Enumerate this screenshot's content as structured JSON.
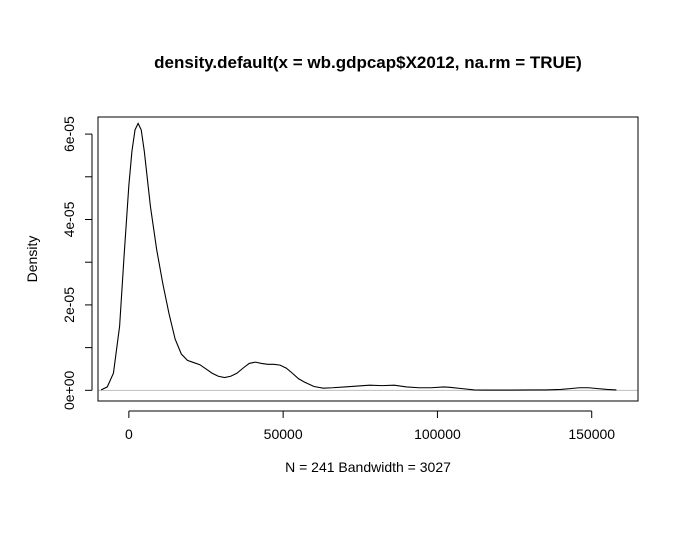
{
  "chart_data": {
    "type": "line",
    "title": "density.default(x = wb.gdpcap$X2012, na.rm = TRUE)",
    "xlabel": "N = 241   Bandwidth = 3027",
    "ylabel": "Density",
    "xlim": [
      -10000,
      165000
    ],
    "ylim": [
      -2.5e-06,
      6.4e-05
    ],
    "x_ticks": [
      0,
      50000,
      100000,
      150000
    ],
    "x_tick_labels": [
      "0",
      "50000",
      "100000",
      "150000"
    ],
    "y_ticks": [
      0,
      1e-05,
      2e-05,
      3e-05,
      4e-05,
      5e-05,
      6e-05
    ],
    "y_tick_labels": [
      "0e+00",
      "",
      "2e-05",
      "",
      "4e-05",
      "",
      "6e-05"
    ],
    "baseline": 0,
    "series": [
      {
        "x": [
          -9000,
          -7000,
          -5000,
          -3000,
          -1500,
          0,
          1000,
          2000,
          3000,
          4000,
          5000,
          6000,
          7000,
          9000,
          11000,
          13000,
          15000,
          17000,
          19000,
          21000,
          23000,
          25000,
          27000,
          29000,
          31000,
          33000,
          35000,
          37000,
          39000,
          41000,
          43000,
          45000,
          47000,
          49000,
          51000,
          53000,
          55000,
          57000,
          60000,
          63000,
          66000,
          70000,
          74000,
          78000,
          82000,
          86000,
          90000,
          94000,
          98000,
          102000,
          104000,
          108000,
          112000,
          115000,
          120000,
          125000,
          130000,
          135000,
          140000,
          143000,
          146000,
          149000,
          152000,
          155000,
          158000
        ],
        "y": [
          1e-07,
          8e-07,
          4e-06,
          1.5e-05,
          3.2e-05,
          4.8e-05,
          5.6e-05,
          6.1e-05,
          6.25e-05,
          6.1e-05,
          5.6e-05,
          4.95e-05,
          4.3e-05,
          3.3e-05,
          2.5e-05,
          1.8e-05,
          1.2e-05,
          8.5e-06,
          7e-06,
          6.5e-06,
          6e-06,
          5e-06,
          4e-06,
          3.3e-06,
          3e-06,
          3.3e-06,
          4e-06,
          5.2e-06,
          6.3e-06,
          6.6e-06,
          6.3e-06,
          6.1e-06,
          6.1e-06,
          5.9e-06,
          5.2e-06,
          4e-06,
          2.7e-06,
          1.9e-06,
          9e-07,
          5e-07,
          6e-07,
          8e-07,
          1e-06,
          1.2e-06,
          1.1e-06,
          1.2e-06,
          8e-07,
          6e-07,
          6e-07,
          8e-07,
          7e-07,
          4e-07,
          1e-07,
          5e-08,
          5e-08,
          5e-08,
          1e-07,
          1e-07,
          2e-07,
          4e-07,
          6e-07,
          6e-07,
          4e-07,
          2e-07,
          1e-07
        ]
      }
    ],
    "grid": false,
    "legend": "none"
  }
}
